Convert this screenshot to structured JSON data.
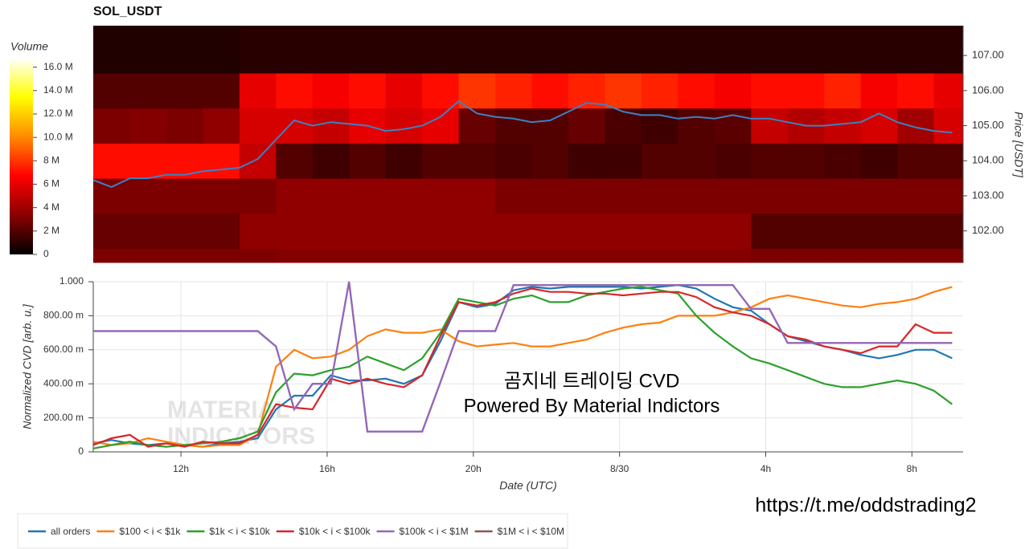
{
  "chart_data": [
    {
      "type": "heatmap",
      "title": "SOL_USDT",
      "ylabel": "Price [USDT]",
      "xlim": [
        9.6,
        33.4
      ],
      "ylim": [
        101.1,
        107.85
      ],
      "yticks": [
        {
          "value": 102,
          "label": "102.00"
        },
        {
          "value": 103,
          "label": "103.00"
        },
        {
          "value": 104,
          "label": "104.00"
        },
        {
          "value": 105,
          "label": "105.00"
        },
        {
          "value": 106,
          "label": "106.00"
        },
        {
          "value": 107,
          "label": "107.00"
        }
      ],
      "x_edges": [
        9.6,
        10.6,
        11.6,
        12.6,
        13.6,
        14.6,
        15.6,
        16.6,
        17.6,
        18.6,
        19.6,
        20.6,
        21.6,
        22.6,
        23.6,
        24.6,
        25.6,
        26.6,
        27.6,
        28.6,
        29.6,
        30.6,
        31.6,
        32.6,
        33.4
      ],
      "y_edges": [
        101.1,
        101.5,
        102.5,
        103.5,
        104.5,
        105.5,
        106.5,
        107.85
      ],
      "z": [
        [
          3000000,
          3000000,
          3000000,
          3000000,
          3000000,
          3200000,
          3200000,
          3200000,
          3200000,
          3200000,
          3200000,
          3200000,
          3200000,
          3200000,
          3200000,
          3200000,
          3200000,
          3200000,
          3000000,
          3000000,
          3000000,
          3000000,
          3000000,
          3000000
        ],
        [
          2500000,
          2500000,
          2500000,
          2500000,
          3500000,
          3500000,
          3500000,
          3500000,
          3500000,
          3500000,
          3500000,
          3500000,
          3500000,
          3500000,
          3500000,
          3500000,
          3500000,
          3500000,
          2000000,
          2000000,
          2000000,
          2000000,
          2000000,
          2000000
        ],
        [
          3000000,
          3000000,
          3000000,
          3000000,
          3000000,
          3500000,
          3500000,
          3500000,
          3500000,
          3500000,
          3500000,
          3000000,
          3000000,
          3000000,
          3000000,
          3000000,
          3000000,
          3000000,
          3000000,
          3000000,
          3000000,
          3000000,
          3000000,
          3000000
        ],
        [
          7000000,
          7000000,
          7000000,
          7000000,
          5000000,
          2000000,
          1500000,
          2000000,
          1500000,
          2000000,
          2000000,
          1800000,
          2000000,
          1500000,
          1500000,
          2000000,
          2000000,
          1800000,
          2000000,
          2000000,
          1800000,
          1500000,
          2000000,
          2000000
        ],
        [
          3000000,
          3200000,
          3000000,
          3500000,
          5500000,
          5500000,
          5000000,
          6000000,
          5500000,
          6000000,
          2500000,
          2000000,
          2000000,
          2500000,
          1800000,
          1500000,
          2000000,
          2200000,
          5000000,
          4500000,
          5000000,
          5500000,
          4000000,
          5500000
        ],
        [
          2000000,
          2000000,
          2000000,
          2000000,
          6000000,
          7000000,
          6500000,
          7000000,
          6000000,
          7000000,
          8000000,
          7500000,
          7000000,
          7500000,
          8000000,
          7500000,
          7000000,
          6500000,
          7000000,
          7000000,
          7500000,
          6500000,
          7000000,
          6000000
        ],
        [
          800000,
          800000,
          800000,
          800000,
          1000000,
          1000000,
          1000000,
          1000000,
          1000000,
          1000000,
          1000000,
          1000000,
          1000000,
          1000000,
          1000000,
          1000000,
          1000000,
          1000000,
          1000000,
          1000000,
          1000000,
          1000000,
          1000000,
          1000000
        ]
      ],
      "colorscale": [
        "#000000",
        "#8b0000",
        "#ff0000",
        "#ff8c00",
        "#ffff00",
        "#ffffff"
      ],
      "colorbar": {
        "title": "Volume",
        "lim": [
          0,
          16800000
        ],
        "ticks": [
          0,
          {
            "value": 2000000,
            "label": "2 M"
          },
          {
            "value": 4000000,
            "label": "4 M"
          },
          {
            "value": 6000000,
            "label": "6 M"
          },
          {
            "value": 8000000,
            "label": "8 M"
          },
          {
            "value": 10000000,
            "label": "10.0 M"
          },
          {
            "value": 12000000,
            "label": "12.0 M"
          },
          {
            "value": 14000000,
            "label": "14.0 M"
          },
          {
            "value": 16000000,
            "label": "16.0 M"
          }
        ]
      },
      "line": {
        "color": "#3b82c4",
        "x": [
          9.6,
          10.1,
          10.6,
          11.1,
          11.6,
          12.1,
          12.6,
          13.1,
          13.6,
          14.1,
          14.6,
          15.1,
          15.6,
          16.1,
          16.6,
          17.1,
          17.6,
          18.1,
          18.6,
          19.1,
          19.6,
          20.1,
          20.6,
          21.1,
          21.6,
          22.1,
          22.6,
          23.1,
          23.6,
          24.1,
          24.6,
          25.1,
          25.6,
          26.1,
          26.6,
          27.1,
          27.6,
          28.1,
          28.6,
          29.1,
          29.6,
          30.1,
          30.6,
          31.1,
          31.6,
          32.1,
          32.6,
          33.1
        ],
        "values": [
          103.45,
          103.25,
          103.5,
          103.5,
          103.6,
          103.6,
          103.7,
          103.75,
          103.8,
          104.05,
          104.6,
          105.15,
          105.0,
          105.1,
          105.05,
          105.0,
          104.85,
          104.9,
          105.0,
          105.25,
          105.7,
          105.35,
          105.25,
          105.2,
          105.1,
          105.15,
          105.4,
          105.65,
          105.6,
          105.4,
          105.3,
          105.3,
          105.2,
          105.25,
          105.2,
          105.3,
          105.2,
          105.2,
          105.1,
          105.0,
          105.0,
          105.05,
          105.1,
          105.35,
          105.1,
          104.95,
          104.85,
          104.8
        ]
      }
    },
    {
      "type": "line",
      "xlabel": "Date (UTC)",
      "ylabel": "Normalized CVD [arb. u.]",
      "grid": true,
      "xlim": [
        9.6,
        33.4
      ],
      "ylim": [
        0,
        1.0
      ],
      "xticks": [
        {
          "value": 12,
          "label": "12h"
        },
        {
          "value": 16,
          "label": "16h"
        },
        {
          "value": 20,
          "label": "20h"
        },
        {
          "value": 24,
          "label": "8/30"
        },
        {
          "value": 28,
          "label": "4h"
        },
        {
          "value": 32,
          "label": "8h"
        }
      ],
      "yticks": [
        0,
        {
          "value": 0.2,
          "label": "200.00 m"
        },
        {
          "value": 0.4,
          "label": "400.00 m"
        },
        {
          "value": 0.6,
          "label": "600.00 m"
        },
        {
          "value": 0.8,
          "label": "800.00 m"
        },
        {
          "value": 1,
          "label": "1.000"
        }
      ],
      "x": [
        9.6,
        10.1,
        10.6,
        11.1,
        11.6,
        12.1,
        12.6,
        13.1,
        13.6,
        14.1,
        14.6,
        15.1,
        15.6,
        16.1,
        16.6,
        17.1,
        17.6,
        18.1,
        18.6,
        19.1,
        19.6,
        20.1,
        20.6,
        21.1,
        21.6,
        22.1,
        22.6,
        23.1,
        23.6,
        24.1,
        24.6,
        25.1,
        25.6,
        26.1,
        26.6,
        27.1,
        27.6,
        28.1,
        28.6,
        29.1,
        29.6,
        30.1,
        30.6,
        31.1,
        31.6,
        32.1,
        32.6,
        33.1
      ],
      "series": [
        {
          "name": "all orders",
          "color": "#1f77b4",
          "values": [
            0.05,
            0.07,
            0.05,
            0.04,
            0.05,
            0.04,
            0.03,
            0.05,
            0.06,
            0.08,
            0.25,
            0.33,
            0.33,
            0.45,
            0.42,
            0.42,
            0.43,
            0.4,
            0.45,
            0.65,
            0.88,
            0.85,
            0.87,
            0.95,
            0.97,
            0.96,
            0.97,
            0.97,
            0.97,
            0.97,
            0.96,
            0.97,
            0.98,
            0.96,
            0.9,
            0.85,
            0.83,
            0.75,
            0.68,
            0.65,
            0.62,
            0.6,
            0.57,
            0.55,
            0.57,
            0.6,
            0.6,
            0.55
          ]
        },
        {
          "name": "$100 < i < $1k",
          "color": "#ff7f0e",
          "values": [
            0.06,
            0.04,
            0.05,
            0.08,
            0.06,
            0.04,
            0.03,
            0.04,
            0.04,
            0.1,
            0.5,
            0.6,
            0.55,
            0.56,
            0.6,
            0.68,
            0.72,
            0.7,
            0.7,
            0.72,
            0.65,
            0.62,
            0.63,
            0.64,
            0.62,
            0.62,
            0.64,
            0.66,
            0.7,
            0.73,
            0.75,
            0.76,
            0.8,
            0.8,
            0.8,
            0.82,
            0.85,
            0.9,
            0.92,
            0.9,
            0.88,
            0.86,
            0.85,
            0.87,
            0.88,
            0.9,
            0.94,
            0.97
          ]
        },
        {
          "name": "$1k < i < $10k",
          "color": "#2ca02c",
          "values": [
            0.02,
            0.04,
            0.06,
            0.04,
            0.03,
            0.04,
            0.05,
            0.06,
            0.08,
            0.12,
            0.35,
            0.46,
            0.45,
            0.48,
            0.5,
            0.56,
            0.52,
            0.48,
            0.55,
            0.7,
            0.9,
            0.88,
            0.86,
            0.9,
            0.92,
            0.88,
            0.88,
            0.92,
            0.94,
            0.96,
            0.97,
            0.95,
            0.93,
            0.8,
            0.7,
            0.62,
            0.55,
            0.52,
            0.48,
            0.44,
            0.4,
            0.38,
            0.38,
            0.4,
            0.42,
            0.4,
            0.36,
            0.28
          ]
        },
        {
          "name": "$10k < i < $100k",
          "color": "#d62728",
          "values": [
            0.04,
            0.08,
            0.1,
            0.03,
            0.05,
            0.03,
            0.06,
            0.05,
            0.05,
            0.1,
            0.28,
            0.26,
            0.25,
            0.43,
            0.4,
            0.43,
            0.4,
            0.38,
            0.45,
            0.68,
            0.88,
            0.86,
            0.88,
            0.93,
            0.96,
            0.94,
            0.94,
            0.93,
            0.93,
            0.92,
            0.93,
            0.94,
            0.94,
            0.91,
            0.85,
            0.82,
            0.8,
            0.75,
            0.68,
            0.66,
            0.62,
            0.6,
            0.58,
            0.62,
            0.62,
            0.75,
            0.7,
            0.7
          ]
        },
        {
          "name": "$1M < i < $10M",
          "color": "#8c564b",
          "values": [
            0.71,
            0.71,
            0.71,
            0.71,
            0.71,
            0.71,
            0.71,
            0.71,
            0.71,
            0.71,
            0.62,
            0.25,
            0.4,
            0.4,
            1.0,
            0.12,
            0.12,
            0.12,
            0.12,
            0.41,
            0.71,
            0.71,
            0.71,
            0.98,
            0.98,
            0.98,
            0.98,
            0.98,
            0.98,
            0.98,
            0.98,
            0.98,
            0.98,
            0.98,
            0.98,
            0.98,
            0.84,
            0.84,
            0.64,
            0.64,
            0.64,
            0.64,
            0.64,
            0.64,
            0.64,
            0.64,
            0.64,
            0.64
          ]
        },
        {
          "name": "$100k < i < $1M",
          "color": "#9467bd",
          "values": [
            0.71,
            0.71,
            0.71,
            0.71,
            0.71,
            0.71,
            0.71,
            0.71,
            0.71,
            0.71,
            0.62,
            0.25,
            0.4,
            0.4,
            1.0,
            0.12,
            0.12,
            0.12,
            0.12,
            0.41,
            0.71,
            0.71,
            0.71,
            0.98,
            0.98,
            0.98,
            0.98,
            0.98,
            0.98,
            0.98,
            0.98,
            0.98,
            0.98,
            0.98,
            0.98,
            0.98,
            0.84,
            0.84,
            0.64,
            0.64,
            0.64,
            0.64,
            0.64,
            0.64,
            0.64,
            0.64,
            0.64,
            0.64
          ]
        }
      ],
      "legend_order": [
        0,
        1,
        2,
        3,
        5,
        4
      ],
      "watermark": [
        "MATERIAL",
        "INDICATORS"
      ],
      "annotations": [
        "곰지네 트레이딩 CVD",
        "Powered By Material Indictors"
      ]
    }
  ],
  "link": "https://t.me/oddstrading2"
}
